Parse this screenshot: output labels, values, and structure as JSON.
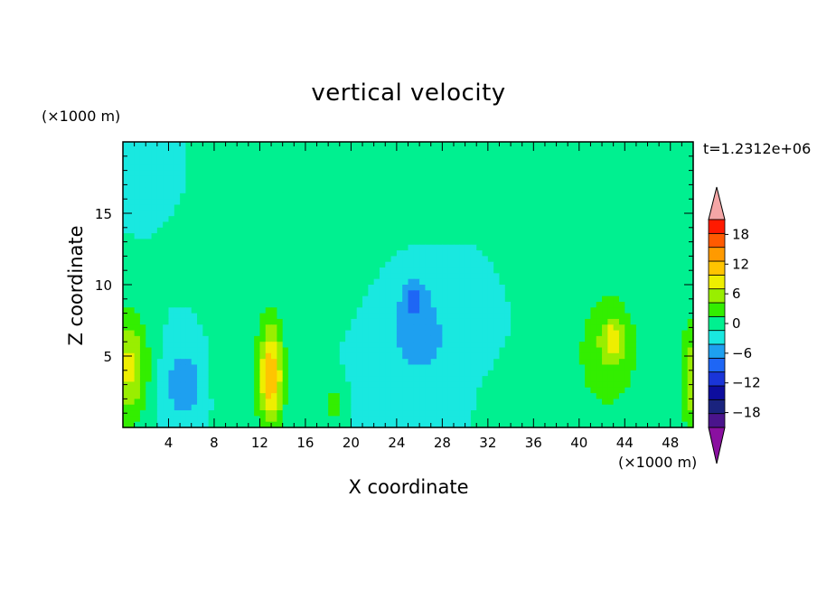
{
  "chart_data": {
    "type": "heatmap",
    "title": "vertical velocity",
    "xlabel": "X coordinate",
    "ylabel": "Z coordinate",
    "x_unit": "(×1000 m)",
    "y_unit": "(×1000 m)",
    "time_label": "t=1.2312e+06",
    "xlim": [
      0,
      50
    ],
    "ylim": [
      0,
      20
    ],
    "x_ticks": [
      4,
      8,
      12,
      16,
      20,
      24,
      28,
      32,
      36,
      40,
      44,
      48
    ],
    "y_ticks": [
      5,
      10,
      15
    ],
    "colorbar": {
      "levels": [
        -21,
        -18,
        -15,
        -12,
        -9,
        -6,
        -3,
        0,
        3,
        6,
        9,
        12,
        15,
        18,
        21
      ],
      "tick_labels": [
        18,
        12,
        6,
        0,
        -6,
        -12,
        -18
      ],
      "colors": [
        "#4a148c",
        "#1a237e",
        "#0d0d9e",
        "#1a35d8",
        "#1e66f5",
        "#1ea0f0",
        "#19e8e0",
        "#00f090",
        "#33ee00",
        "#99ee00",
        "#eeee00",
        "#ffc400",
        "#ff9a00",
        "#ff5a00",
        "#ff1a00"
      ],
      "over_color": "#f4a6a6",
      "under_color": "#8a10a0"
    },
    "blobs": [
      {
        "x": 0.6,
        "z": 4.2,
        "rx": 1.6,
        "rz": 3.8,
        "v": 10
      },
      {
        "x": 13,
        "z": 3.6,
        "rx": 1.1,
        "rz": 3.6,
        "v": 14
      },
      {
        "x": 5.3,
        "z": 3.0,
        "rx": 1.6,
        "rz": 2.4,
        "v": -6
      },
      {
        "x": 26,
        "z": 6.5,
        "rx": 3.6,
        "rz": 4.0,
        "v": -4
      },
      {
        "x": 25.5,
        "z": 9.0,
        "rx": 0.9,
        "rz": 1.3,
        "v": -6
      },
      {
        "x": 42.5,
        "z": 5.0,
        "rx": 3.2,
        "rz": 4.5,
        "v": 5
      },
      {
        "x": 43.0,
        "z": 6.2,
        "rx": 1.0,
        "rz": 1.4,
        "v": 7
      },
      {
        "x": 49.7,
        "z": 3.5,
        "rx": 0.8,
        "rz": 4.0,
        "v": 8
      },
      {
        "x": 18.5,
        "z": 1.6,
        "rx": 0.8,
        "rz": 1.4,
        "v": 5
      },
      {
        "x": 8.5,
        "z": 4.0,
        "rx": 1.0,
        "rz": 1.2,
        "v": 2
      },
      {
        "x": 17,
        "z": 16.5,
        "rx": 8.5,
        "rz": 4.5,
        "v": 1.8
      },
      {
        "x": 15.5,
        "z": 11,
        "rx": 5.0,
        "rz": 3.5,
        "v": 1.6
      },
      {
        "x": 44,
        "z": 13,
        "rx": 5.5,
        "rz": 4.5,
        "v": 1.7
      },
      {
        "x": 27,
        "z": 16,
        "rx": 2.0,
        "rz": 1.6,
        "v": 1.5
      },
      {
        "x": 10.5,
        "z": 3.5,
        "rx": 2.5,
        "rz": 4.0,
        "v": 1.5
      },
      {
        "x": 36,
        "z": 2.5,
        "rx": 2.0,
        "rz": 2.5,
        "v": 1.3
      },
      {
        "x": 33,
        "z": 1.5,
        "rx": 1.5,
        "rz": 1.8,
        "v": 1.2
      },
      {
        "x": 2,
        "z": 18,
        "rx": 2.5,
        "rz": 2.5,
        "v": -2
      }
    ]
  }
}
